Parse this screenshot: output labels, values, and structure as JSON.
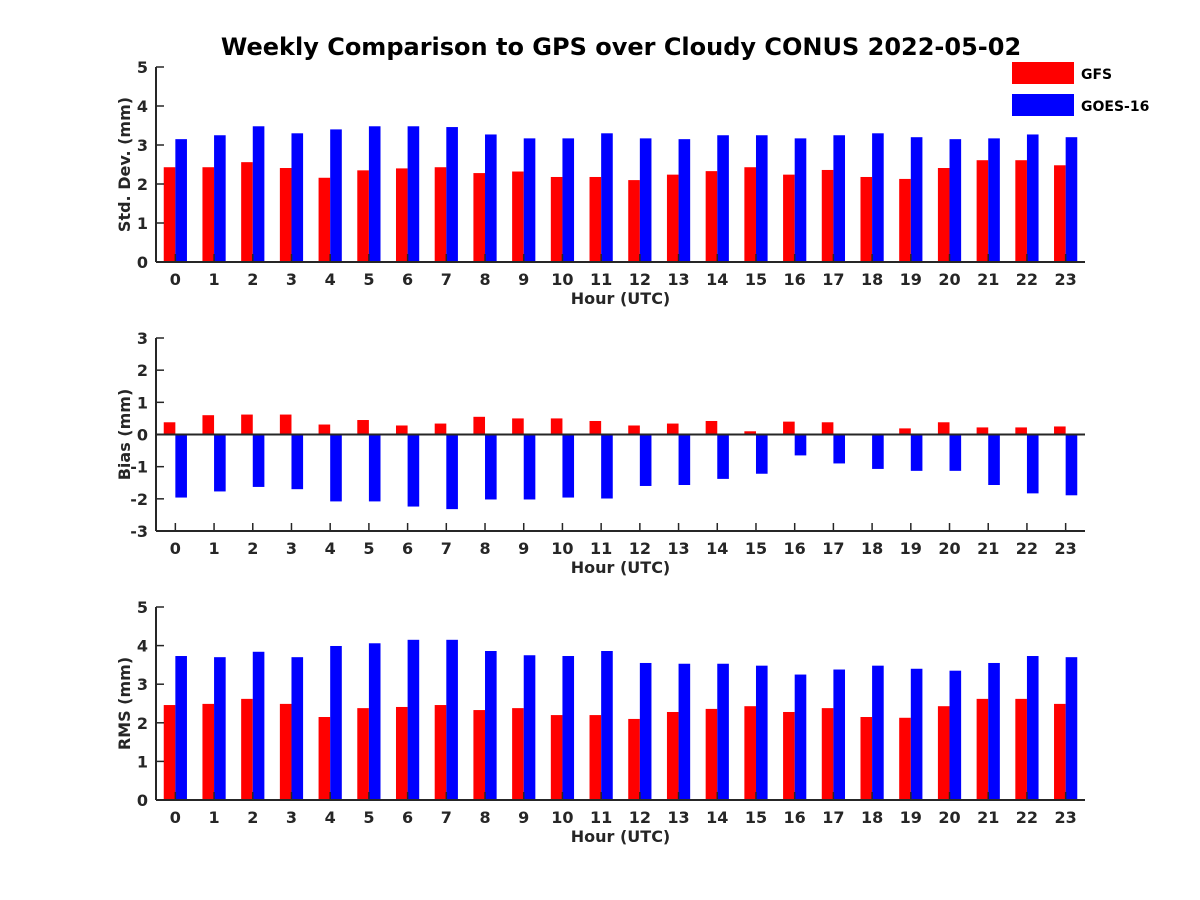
{
  "title": "Weekly Comparison to GPS over Cloudy CONUS 2022-05-02",
  "colors": {
    "GFS": "#ff0000",
    "GOES-16": "#0000ff"
  },
  "legend": [
    {
      "label": "GFS",
      "color": "#ff0000"
    },
    {
      "label": "GOES-16",
      "color": "#0000ff"
    }
  ],
  "chart_data": [
    {
      "type": "bar",
      "ylabel": "Std. Dev. (mm)",
      "xlabel": "Hour (UTC)",
      "ylim": [
        0,
        5
      ],
      "yticks": [
        0,
        1,
        2,
        3,
        4,
        5
      ],
      "categories": [
        "0",
        "1",
        "2",
        "3",
        "4",
        "5",
        "6",
        "7",
        "8",
        "9",
        "10",
        "11",
        "12",
        "13",
        "14",
        "15",
        "16",
        "17",
        "18",
        "19",
        "20",
        "21",
        "22",
        "23"
      ],
      "series": [
        {
          "name": "GFS",
          "values": [
            2.43,
            2.43,
            2.56,
            2.41,
            2.16,
            2.35,
            2.4,
            2.43,
            2.28,
            2.32,
            2.18,
            2.18,
            2.1,
            2.24,
            2.33,
            2.43,
            2.24,
            2.36,
            2.18,
            2.13,
            2.41,
            2.61,
            2.61,
            2.48
          ]
        },
        {
          "name": "GOES-16",
          "values": [
            3.15,
            3.25,
            3.48,
            3.3,
            3.4,
            3.48,
            3.48,
            3.46,
            3.27,
            3.17,
            3.17,
            3.3,
            3.17,
            3.15,
            3.25,
            3.25,
            3.17,
            3.25,
            3.3,
            3.2,
            3.15,
            3.17,
            3.27,
            3.2
          ]
        }
      ]
    },
    {
      "type": "bar",
      "ylabel": "Bias (mm)",
      "xlabel": "Hour (UTC)",
      "ylim": [
        -3,
        3
      ],
      "yticks": [
        -3,
        -2,
        -1,
        0,
        1,
        2,
        3
      ],
      "categories": [
        "0",
        "1",
        "2",
        "3",
        "4",
        "5",
        "6",
        "7",
        "8",
        "9",
        "10",
        "11",
        "12",
        "13",
        "14",
        "15",
        "16",
        "17",
        "18",
        "19",
        "20",
        "21",
        "22",
        "23"
      ],
      "series": [
        {
          "name": "GFS",
          "values": [
            0.38,
            0.6,
            0.62,
            0.62,
            0.31,
            0.45,
            0.28,
            0.34,
            0.55,
            0.5,
            0.5,
            0.42,
            0.28,
            0.34,
            0.42,
            0.1,
            0.4,
            0.38,
            0.0,
            0.19,
            0.38,
            0.22,
            0.22,
            0.25
          ]
        },
        {
          "name": "GOES-16",
          "values": [
            -1.96,
            -1.77,
            -1.63,
            -1.7,
            -2.08,
            -2.08,
            -2.24,
            -2.32,
            -2.02,
            -2.02,
            -1.96,
            -1.99,
            -1.6,
            -1.57,
            -1.38,
            -1.22,
            -0.65,
            -0.9,
            -1.07,
            -1.13,
            -1.13,
            -1.57,
            -1.83,
            -1.89
          ]
        }
      ]
    },
    {
      "type": "bar",
      "ylabel": "RMS (mm)",
      "xlabel": "Hour (UTC)",
      "ylim": [
        0,
        5
      ],
      "yticks": [
        0,
        1,
        2,
        3,
        4,
        5
      ],
      "categories": [
        "0",
        "1",
        "2",
        "3",
        "4",
        "5",
        "6",
        "7",
        "8",
        "9",
        "10",
        "11",
        "12",
        "13",
        "14",
        "15",
        "16",
        "17",
        "18",
        "19",
        "20",
        "21",
        "22",
        "23"
      ],
      "series": [
        {
          "name": "GFS",
          "values": [
            2.46,
            2.49,
            2.62,
            2.49,
            2.15,
            2.38,
            2.41,
            2.46,
            2.33,
            2.38,
            2.2,
            2.2,
            2.1,
            2.28,
            2.36,
            2.43,
            2.28,
            2.38,
            2.15,
            2.13,
            2.43,
            2.62,
            2.62,
            2.49
          ]
        },
        {
          "name": "GOES-16",
          "values": [
            3.73,
            3.7,
            3.84,
            3.7,
            3.99,
            4.06,
            4.15,
            4.15,
            3.86,
            3.75,
            3.73,
            3.86,
            3.55,
            3.53,
            3.53,
            3.48,
            3.25,
            3.38,
            3.48,
            3.4,
            3.35,
            3.55,
            3.73,
            3.7
          ]
        }
      ]
    }
  ]
}
